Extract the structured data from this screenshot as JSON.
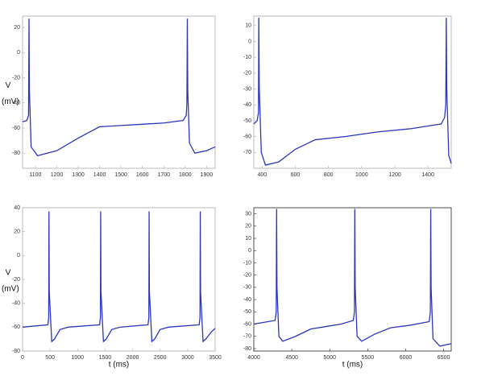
{
  "chart_data": [
    {
      "type": "line",
      "ylabel": [
        "V",
        "(mV)"
      ],
      "x": [
        1040,
        1060,
        1068,
        1070,
        1072,
        1080,
        1110,
        1200,
        1300,
        1400,
        1500,
        1600,
        1700,
        1790,
        1805,
        1808,
        1810,
        1812,
        1820,
        1845,
        1900,
        1940
      ],
      "series": [
        {
          "color": "#2a35c0",
          "values": [
            -55,
            -54,
            -50,
            27,
            -30,
            -75,
            -82,
            -78,
            -68,
            -59,
            -58,
            -57,
            -56,
            -54,
            -50,
            -40,
            27,
            -30,
            -72,
            -80,
            -78,
            -75
          ]
        }
      ],
      "xlim": [
        1040,
        1940
      ],
      "ylim": [
        -92,
        29
      ],
      "xticks": [
        1100,
        1200,
        1300,
        1400,
        1500,
        1600,
        1700,
        1800,
        1900
      ],
      "yticks": [
        -80,
        -60,
        -40,
        -20,
        0,
        20
      ]
    },
    {
      "type": "line",
      "x": [
        350,
        370,
        378,
        380,
        383,
        395,
        420,
        500,
        600,
        720,
        900,
        1100,
        1300,
        1480,
        1500,
        1507,
        1510,
        1513,
        1525,
        1540
      ],
      "series": [
        {
          "color": "#2a35c0",
          "values": [
            -52,
            -50,
            -45,
            15,
            -30,
            -70,
            -78,
            -76,
            -68,
            -62,
            -60,
            -57,
            -55,
            -52,
            -48,
            -40,
            15,
            -30,
            -72,
            -77
          ]
        }
      ],
      "xlim": [
        350,
        1540
      ],
      "ylim": [
        -80,
        16
      ],
      "xticks": [
        400,
        600,
        800,
        1000,
        1200,
        1400
      ],
      "yticks": [
        -70,
        -60,
        -50,
        -40,
        -30,
        -20,
        -10,
        0,
        10
      ]
    },
    {
      "type": "line",
      "ylabel": [
        "V",
        "(mV)"
      ],
      "xlabel": "t (ms)",
      "x": [
        0,
        460,
        475,
        480,
        485,
        530,
        580,
        680,
        830,
        1400,
        1415,
        1420,
        1425,
        1470,
        1520,
        1620,
        1770,
        2280,
        2295,
        2300,
        2305,
        2350,
        2400,
        2500,
        2650,
        3210,
        3225,
        3230,
        3235,
        3280,
        3330,
        3430,
        3500
      ],
      "series": [
        {
          "color": "#2a35c0",
          "values": [
            -60,
            -58,
            -52,
            37,
            -30,
            -72,
            -70,
            -62,
            -60,
            -58,
            -52,
            37,
            -30,
            -72,
            -70,
            -62,
            -60,
            -58,
            -52,
            37,
            -30,
            -72,
            -70,
            -62,
            -60,
            -58,
            -52,
            37,
            -30,
            -72,
            -70,
            -64,
            -61
          ]
        }
      ],
      "xlim": [
        0,
        3500
      ],
      "ylim": [
        -80,
        40
      ],
      "xticks": [
        0,
        500,
        1000,
        1500,
        2000,
        2500,
        3000,
        3500
      ],
      "yticks": [
        -80,
        -60,
        -40,
        -20,
        0,
        20,
        40
      ]
    },
    {
      "type": "line",
      "xlabel": "t (ms)",
      "x": [
        4000,
        4280,
        4295,
        4300,
        4305,
        4330,
        4380,
        4550,
        4750,
        4950,
        5150,
        5310,
        5325,
        5330,
        5335,
        5360,
        5420,
        5600,
        5800,
        6050,
        6310,
        6325,
        6330,
        6335,
        6360,
        6450,
        6600
      ],
      "series": [
        {
          "color": "#2a35c0",
          "values": [
            -60,
            -57,
            -50,
            34,
            -30,
            -70,
            -74,
            -70,
            -64,
            -62,
            -60,
            -57,
            -50,
            34,
            -30,
            -70,
            -74,
            -68,
            -63,
            -61,
            -58,
            -50,
            34,
            -30,
            -72,
            -78,
            -76
          ]
        }
      ],
      "xlim": [
        4000,
        6600
      ],
      "ylim": [
        -82,
        35
      ],
      "xticks": [
        4000,
        4500,
        5000,
        5500,
        6000,
        6500
      ],
      "yticks": [
        -80,
        -70,
        -60,
        -50,
        -40,
        -30,
        -20,
        -10,
        0,
        10,
        20,
        30
      ]
    }
  ]
}
